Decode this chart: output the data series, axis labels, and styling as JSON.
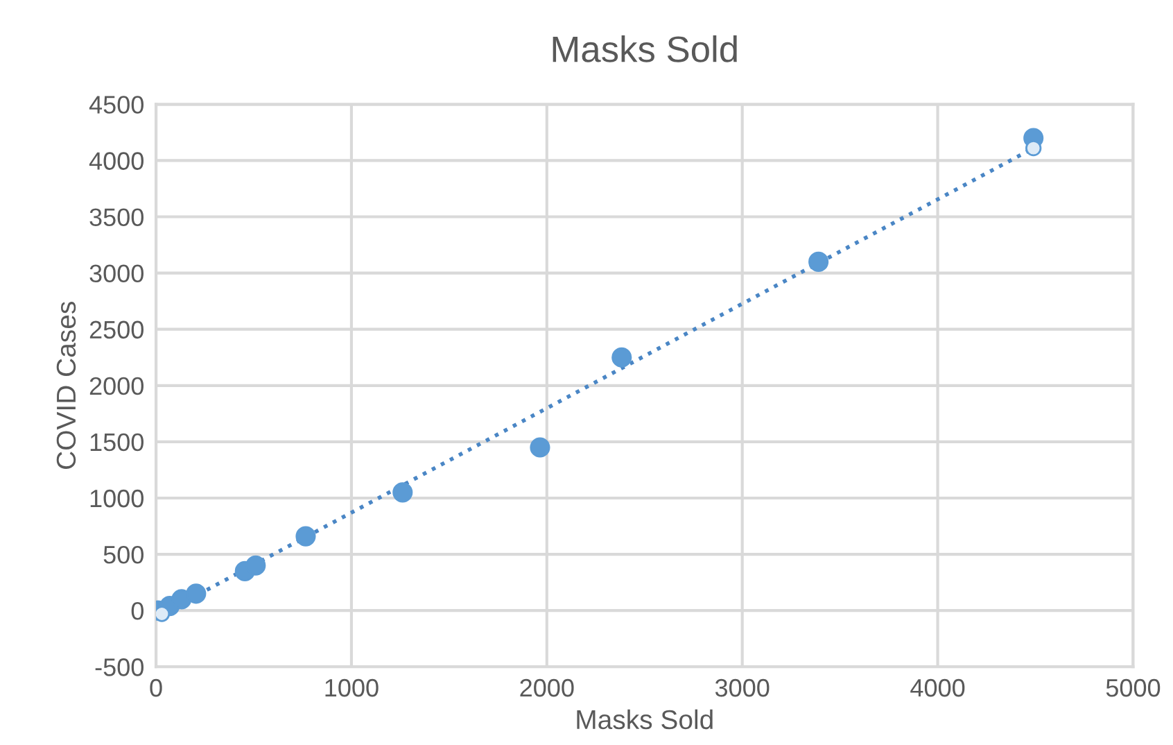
{
  "chart_data": {
    "type": "scatter",
    "title": "Masks Sold",
    "xlabel": "Masks Sold",
    "ylabel": "COVID Cases",
    "xlim": [
      0,
      5000
    ],
    "xticks": [
      0,
      1000,
      2000,
      3000,
      4000,
      5000
    ],
    "ylim": [
      -500,
      4500
    ],
    "yticks": [
      -500,
      0,
      500,
      1000,
      1500,
      2000,
      2500,
      3000,
      3500,
      4000,
      4500
    ],
    "grid": true,
    "legend": false,
    "series": [
      {
        "color": "#5b9bd5",
        "marker": "circle",
        "x": [
          10,
          70,
          130,
          205,
          455,
          510,
          766,
          1262,
          1965,
          2383,
          3390,
          4490
        ],
        "values": [
          0,
          40,
          100,
          150,
          350,
          400,
          660,
          1050,
          1450,
          2250,
          3100,
          4200
        ]
      },
      {
        "type": "line",
        "color": "#4a86c5",
        "line_style": "dotted",
        "marker": "none",
        "x": [
          30,
          4490
        ],
        "values": [
          -30,
          4110
        ]
      },
      {
        "type": "scatter",
        "color": "#deebf7",
        "marker": "circle",
        "x": [
          30,
          4490
        ],
        "values": [
          -30,
          4110
        ]
      }
    ]
  }
}
